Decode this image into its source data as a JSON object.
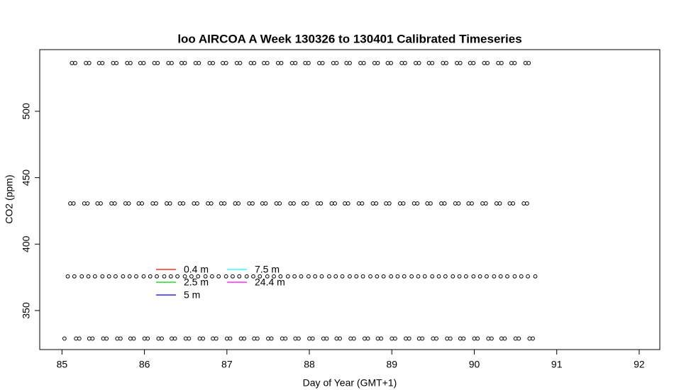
{
  "chart_data": {
    "type": "scatter",
    "title": "loo AIRCOA A  Week 130326 to 130401  Calibrated Timeseries",
    "x_label": "Day of Year (GMT+1)",
    "y_label": "CO2 (ppm)",
    "xlim": [
      84.73,
      92.25
    ],
    "ylim": [
      320.6,
      546.4
    ],
    "xticks": [
      85,
      86,
      87,
      88,
      89,
      90,
      91,
      92
    ],
    "yticks": [
      350,
      400,
      450,
      500
    ],
    "point_color": "#000000",
    "legend": [
      {
        "name": "0.4 m",
        "color": "#ff0000"
      },
      {
        "name": "2.5 m",
        "color": "#00cd00"
      },
      {
        "name": "5 m",
        "color": "#0000ff"
      },
      {
        "name": "7.5 m",
        "color": "#00ffff"
      },
      {
        "name": "24.4 m",
        "color": "#ff00ff"
      }
    ],
    "rows": [
      {
        "y": 536.3,
        "x": [
          85.12,
          85.16,
          85.29,
          85.33,
          85.45,
          85.49,
          85.62,
          85.66,
          85.79,
          85.83,
          85.95,
          85.99,
          86.12,
          86.16,
          86.29,
          86.33,
          86.45,
          86.49,
          86.62,
          86.66,
          86.79,
          86.83,
          86.95,
          86.99,
          87.12,
          87.16,
          87.29,
          87.33,
          87.45,
          87.49,
          87.62,
          87.66,
          87.79,
          87.83,
          87.95,
          87.99,
          88.12,
          88.16,
          88.29,
          88.33,
          88.45,
          88.49,
          88.62,
          88.66,
          88.79,
          88.83,
          88.95,
          88.99,
          89.12,
          89.16,
          89.29,
          89.33,
          89.45,
          89.49,
          89.62,
          89.66,
          89.79,
          89.83,
          89.95,
          89.99,
          90.12,
          90.16,
          90.29,
          90.33,
          90.45,
          90.49,
          90.62,
          90.66
        ]
      },
      {
        "y": 430.6,
        "x": [
          85.1,
          85.14,
          85.27,
          85.31,
          85.43,
          85.47,
          85.6,
          85.64,
          85.77,
          85.81,
          85.93,
          85.97,
          86.1,
          86.14,
          86.27,
          86.31,
          86.43,
          86.47,
          86.6,
          86.64,
          86.77,
          86.81,
          86.93,
          86.97,
          87.1,
          87.14,
          87.27,
          87.31,
          87.43,
          87.47,
          87.6,
          87.64,
          87.77,
          87.81,
          87.93,
          87.97,
          88.1,
          88.14,
          88.27,
          88.31,
          88.43,
          88.47,
          88.6,
          88.64,
          88.77,
          88.81,
          88.93,
          88.97,
          89.1,
          89.14,
          89.27,
          89.31,
          89.43,
          89.47,
          89.6,
          89.64,
          89.77,
          89.81,
          89.93,
          89.97,
          90.1,
          90.14,
          90.27,
          90.31,
          90.43,
          90.47,
          90.6,
          90.64
        ]
      },
      {
        "y": 375.7,
        "x": [
          85.07,
          85.15,
          85.24,
          85.32,
          85.4,
          85.49,
          85.57,
          85.65,
          85.74,
          85.82,
          85.9,
          85.99,
          86.07,
          86.15,
          86.24,
          86.32,
          86.4,
          86.49,
          86.57,
          86.65,
          86.74,
          86.82,
          86.9,
          86.99,
          87.07,
          87.15,
          87.24,
          87.32,
          87.4,
          87.49,
          87.57,
          87.65,
          87.74,
          87.82,
          87.9,
          87.99,
          88.07,
          88.15,
          88.24,
          88.32,
          88.4,
          88.49,
          88.57,
          88.65,
          88.74,
          88.82,
          88.9,
          88.99,
          89.07,
          89.15,
          89.24,
          89.32,
          89.4,
          89.49,
          89.57,
          89.65,
          89.74,
          89.82,
          89.9,
          89.99,
          90.07,
          90.15,
          90.24,
          90.32,
          90.4,
          90.49,
          90.57,
          90.65,
          90.74
        ]
      },
      {
        "y": 328.9,
        "x": [
          85.03,
          85.17,
          85.21,
          85.33,
          85.37,
          85.5,
          85.54,
          85.67,
          85.71,
          85.83,
          85.87,
          86.0,
          86.04,
          86.17,
          86.21,
          86.33,
          86.37,
          86.5,
          86.54,
          86.67,
          86.71,
          86.83,
          86.87,
          87.0,
          87.04,
          87.17,
          87.21,
          87.33,
          87.37,
          87.5,
          87.54,
          87.67,
          87.71,
          87.83,
          87.87,
          88.0,
          88.04,
          88.17,
          88.21,
          88.33,
          88.37,
          88.5,
          88.54,
          88.67,
          88.71,
          88.83,
          88.87,
          89.0,
          89.04,
          89.17,
          89.21,
          89.33,
          89.37,
          89.5,
          89.54,
          89.67,
          89.71,
          89.83,
          89.87,
          90.0,
          90.04,
          90.17,
          90.21,
          90.33,
          90.37,
          90.5,
          90.54,
          90.67,
          90.71
        ]
      }
    ]
  }
}
